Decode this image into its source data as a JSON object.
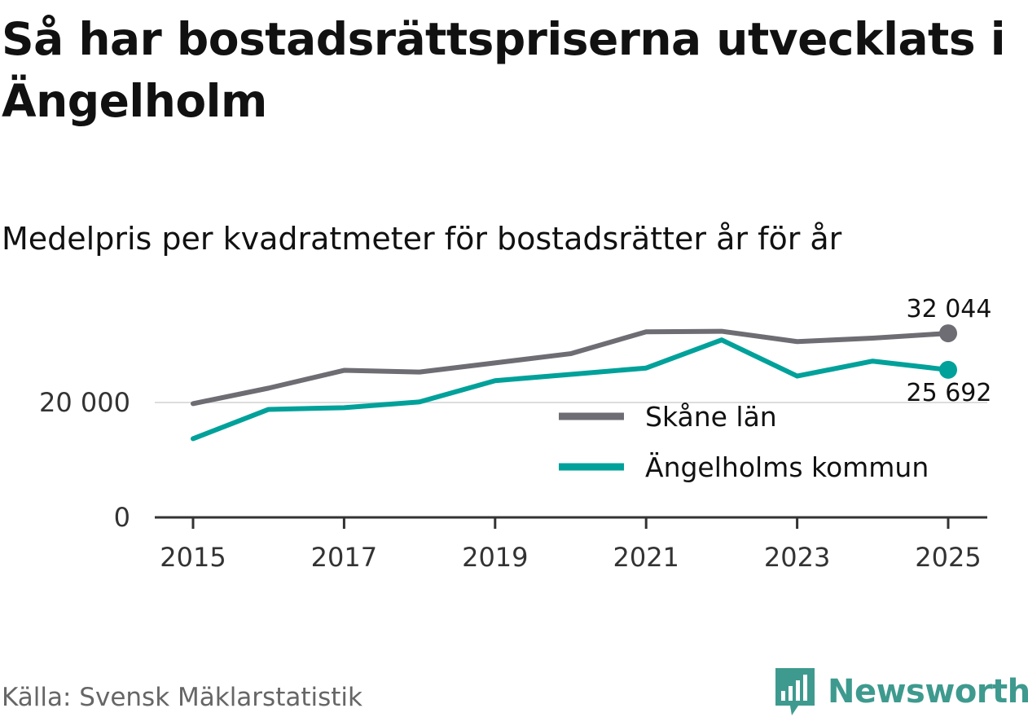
{
  "header": {
    "title": "Så har bostadsrättspriserna utvecklats i Ängelholm",
    "subtitle": "Medelpris per kvadratmeter för bostadsrätter år för år"
  },
  "footer": {
    "source": "Källa: Svensk Mäklarstatistik",
    "brand": "Newsworthy"
  },
  "colors": {
    "skane": "#6e6d73",
    "angelholm": "#00a19a",
    "gridline": "#dddddd",
    "axis": "#333333",
    "brand": "#3e9a8e"
  },
  "chart_data": {
    "type": "line",
    "title": "Medelpris per kvadratmeter för bostadsrätter år för år",
    "xlabel": "",
    "ylabel": "",
    "x": [
      2015,
      2016,
      2017,
      2018,
      2019,
      2020,
      2021,
      2022,
      2023,
      2024,
      2025
    ],
    "xticks": [
      "2015",
      "2017",
      "2019",
      "2021",
      "2023",
      "2025"
    ],
    "ylim": [
      0,
      33000
    ],
    "yticks": [
      0,
      20000
    ],
    "ytick_labels": [
      "0",
      "20 000"
    ],
    "grid": "horizontal",
    "legend_position": "bottom-right",
    "series": [
      {
        "name": "Skåne län",
        "color": "#6e6d73",
        "values": [
          19800,
          22500,
          25600,
          25300,
          26900,
          28500,
          32300,
          32400,
          30600,
          31200,
          32044
        ],
        "end_label": "32 044"
      },
      {
        "name": "Ängelholms kommun",
        "color": "#00a19a",
        "values": [
          13700,
          18800,
          19100,
          20100,
          23800,
          24900,
          26000,
          30900,
          24600,
          27200,
          25692
        ],
        "end_label": "25 692"
      }
    ]
  }
}
